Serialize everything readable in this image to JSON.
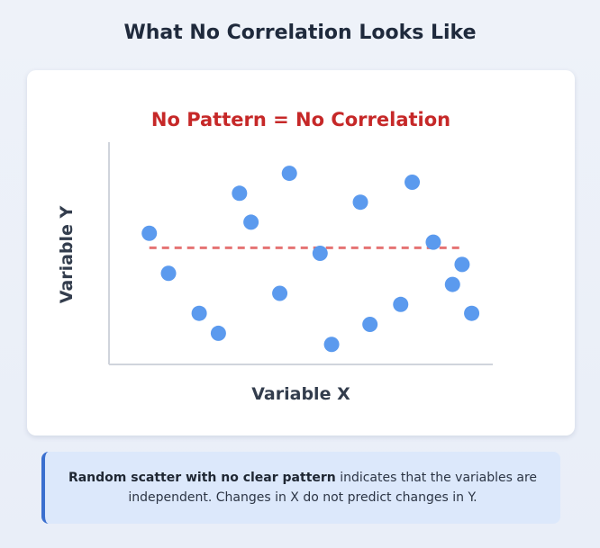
{
  "page": {
    "title": "What No Correlation Looks Like"
  },
  "chart_data": {
    "type": "scatter",
    "title": "No Pattern = No Correlation",
    "xlabel": "Variable X",
    "ylabel": "Variable Y",
    "xlim": [
      0,
      100
    ],
    "ylim": [
      0,
      100
    ],
    "grid": false,
    "points": [
      {
        "x": 10.5,
        "y": 59
      },
      {
        "x": 15.5,
        "y": 41
      },
      {
        "x": 23.5,
        "y": 23
      },
      {
        "x": 28.5,
        "y": 14
      },
      {
        "x": 34,
        "y": 77
      },
      {
        "x": 37,
        "y": 64
      },
      {
        "x": 44.5,
        "y": 32
      },
      {
        "x": 47,
        "y": 86
      },
      {
        "x": 55,
        "y": 50
      },
      {
        "x": 58,
        "y": 9
      },
      {
        "x": 65.5,
        "y": 73
      },
      {
        "x": 68,
        "y": 18
      },
      {
        "x": 76,
        "y": 27
      },
      {
        "x": 79,
        "y": 82
      },
      {
        "x": 84.5,
        "y": 55
      },
      {
        "x": 89.5,
        "y": 36
      },
      {
        "x": 92,
        "y": 45
      },
      {
        "x": 94.5,
        "y": 23
      }
    ],
    "reference_line": {
      "y": 52.5,
      "x_start": 10.5,
      "x_end": 92,
      "color": "#e57373",
      "style": "dashed"
    },
    "colors": {
      "point": "#5b9aee",
      "axis": "#d0d4dc",
      "title": "#c62828"
    }
  },
  "callout": {
    "bold": "Random scatter with no clear pattern",
    "rest": " indicates that the variables are independent. Changes in X do not predict changes in Y."
  }
}
